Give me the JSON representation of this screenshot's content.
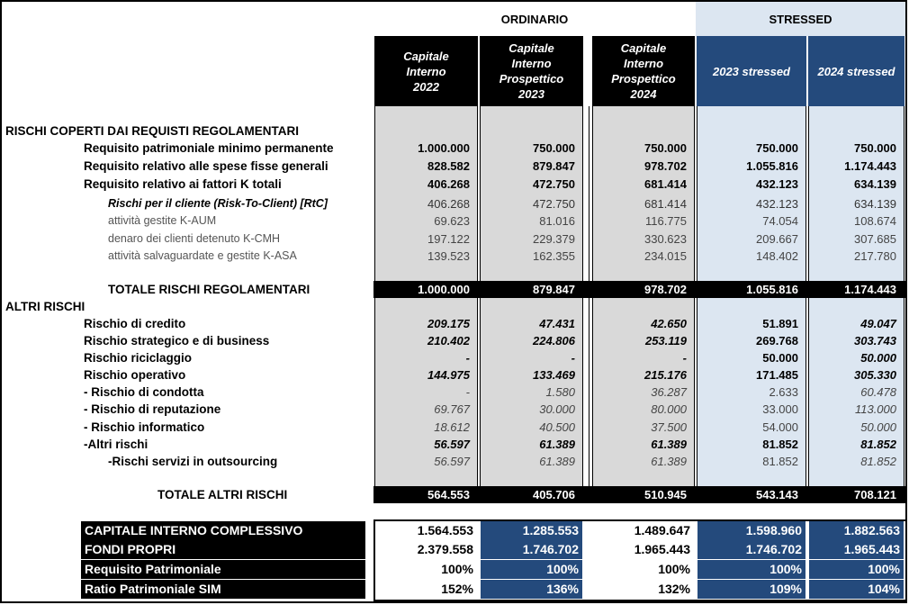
{
  "header": {
    "ordinario": "ORDINARIO",
    "stressed": "STRESSED",
    "columns": [
      [
        "Capitale",
        "Interno",
        "2022"
      ],
      [
        "Capitale",
        "Interno",
        "Prospettico",
        "2023"
      ],
      [
        "Capitale",
        "Interno",
        "Prospettico",
        "2024"
      ],
      [
        "2023 stressed"
      ],
      [
        "2024 stressed"
      ]
    ]
  },
  "rows": [
    {
      "label": "RISCHI COPERTI DAI REQUISTI REGOLAMENTARI",
      "style": "section",
      "values": [
        "",
        "",
        "",
        "",
        ""
      ]
    },
    {
      "label": "Requisito patrimoniale minimo permanente",
      "style": "bold1",
      "values": [
        "1.000.000",
        "750.000",
        "750.000",
        "750.000",
        "750.000"
      ]
    },
    {
      "label": "Requisito relativo alle spese fisse generali",
      "style": "bold1",
      "values": [
        "828.582",
        "879.847",
        "978.702",
        "1.055.816",
        "1.174.443"
      ]
    },
    {
      "label": "Requisito relativo ai fattori K totali",
      "style": "bold1",
      "values": [
        "406.268",
        "472.750",
        "681.414",
        "432.123",
        "634.139"
      ]
    },
    {
      "label": "Rischi per il cliente (Risk-To-Client) [RtC]",
      "style": "bi2",
      "values": [
        "406.268",
        "472.750",
        "681.414",
        "432.123",
        "634.139"
      ]
    },
    {
      "label": "attività gestite K-AUM",
      "style": "light2",
      "values": [
        "69.623",
        "81.016",
        "116.775",
        "74.054",
        "108.674"
      ]
    },
    {
      "label": "denaro dei clienti detenuto K-CMH",
      "style": "light2",
      "values": [
        "197.122",
        "229.379",
        "330.623",
        "209.667",
        "307.685"
      ]
    },
    {
      "label": "attività salvaguardate e gestite K-ASA",
      "style": "light2",
      "values": [
        "139.523",
        "162.355",
        "234.015",
        "148.402",
        "217.780"
      ]
    },
    {
      "label": "TOTALE RISCHI REGOLAMENTARI",
      "style": "total1",
      "values": [
        "1.000.000",
        "879.847",
        "978.702",
        "1.055.816",
        "1.174.443"
      ]
    },
    {
      "label": "ALTRI RISCHI",
      "style": "section",
      "values": [
        "",
        "",
        "",
        "",
        ""
      ]
    },
    {
      "label": "Rischio di credito",
      "style": "bold1i",
      "values": [
        "209.175",
        "47.431",
        "42.650",
        "51.891",
        "49.047"
      ]
    },
    {
      "label": "Rischio strategico e di business",
      "style": "bold1i",
      "values": [
        "210.402",
        "224.806",
        "253.119",
        "269.768",
        "303.743"
      ]
    },
    {
      "label": "Rischio riciclaggio",
      "style": "bold1i",
      "values": [
        "-",
        "-",
        "-",
        "50.000",
        "50.000"
      ]
    },
    {
      "label": "Rischio operativo",
      "style": "bold1i",
      "values": [
        "144.975",
        "133.469",
        "215.176",
        "171.485",
        "305.330"
      ]
    },
    {
      "label": "- Rischio di condotta",
      "style": "sub",
      "values": [
        "-",
        "1.580",
        "36.287",
        "2.633",
        "60.478"
      ]
    },
    {
      "label": "- Rischio di reputazione",
      "style": "sub",
      "values": [
        "69.767",
        "30.000",
        "80.000",
        "33.000",
        "113.000"
      ]
    },
    {
      "label": "- Rischio informatico",
      "style": "sub",
      "values": [
        "18.612",
        "40.500",
        "37.500",
        "54.000",
        "50.000"
      ]
    },
    {
      "label": "-Altri rischi",
      "style": "bold1i",
      "values": [
        "56.597",
        "61.389",
        "61.389",
        "81.852",
        "81.852"
      ]
    },
    {
      "label": "-Rischi servizi in outsourcing",
      "style": "sub2",
      "values": [
        "56.597",
        "61.389",
        "61.389",
        "81.852",
        "81.852"
      ]
    },
    {
      "label": "TOTALE ALTRI RISCHI",
      "style": "total2",
      "values": [
        "564.553",
        "405.706",
        "510.945",
        "543.143",
        "708.121"
      ]
    }
  ],
  "summary": [
    {
      "label": "CAPITALE INTERNO COMPLESSIVO",
      "values": [
        "1.564.553",
        "1.285.553",
        "1.489.647",
        "1.598.960",
        "1.882.563"
      ],
      "fills": [
        "white",
        "blue",
        "white",
        "blue",
        "blue"
      ]
    },
    {
      "label": "FONDI PROPRI",
      "values": [
        "2.379.558",
        "1.746.702",
        "1.965.443",
        "1.746.702",
        "1.965.443"
      ],
      "fills": [
        "white",
        "blue",
        "white",
        "blue",
        "blue"
      ]
    },
    {
      "label": "Requisito Patrimoniale",
      "values": [
        "100%",
        "100%",
        "100%",
        "100%",
        "100%"
      ],
      "fills": [
        "white",
        "blue",
        "white",
        "blue",
        "blue"
      ]
    },
    {
      "label": "Ratio Patrimoniale SIM",
      "values": [
        "152%",
        "136%",
        "132%",
        "109%",
        "104%"
      ],
      "fills": [
        "white",
        "blue",
        "white",
        "blue",
        "blue"
      ]
    }
  ],
  "colors": {
    "grey": "#d9d9d9",
    "stressed_bg": "#dce6f1",
    "blue": "#244a7c",
    "black": "#000000"
  }
}
